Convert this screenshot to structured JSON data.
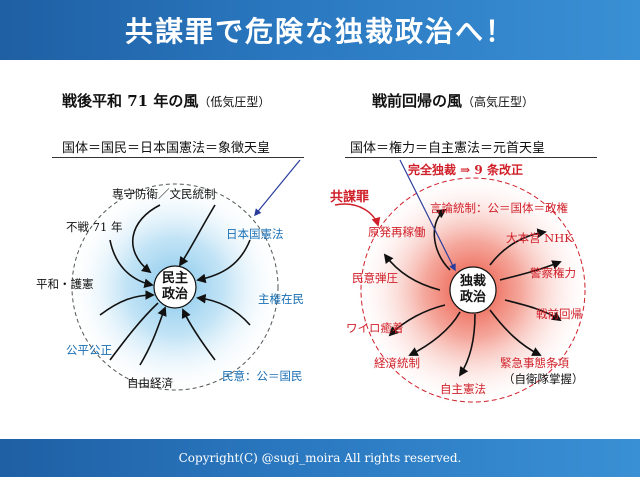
{
  "title": "共謀罪で危険な独裁政治へ！",
  "footer": "Copyright(C) @sugi_moira All rights reserved.",
  "left": {
    "heading": "戦後平和 71 年の風",
    "heading_sub": "（低気圧型）",
    "formula": "国体＝国民＝日本国憲法＝象徴天皇",
    "center": [
      "民主",
      "政治"
    ],
    "labels": [
      "専守防衛／文民統制",
      "不戦 71 年",
      "日本国憲法",
      "平和・護憲",
      "主権在民",
      "公平公正",
      "自由経済",
      "民意：公＝国民"
    ]
  },
  "right": {
    "heading": "戦前回帰の風",
    "heading_sub": "（高気圧型）",
    "formula": "国体＝権力＝自主憲法＝元首天皇",
    "dictatorship_note": "完全独裁 ⇒ 9 条改正",
    "conspiracy_label": "共謀罪",
    "center": [
      "独裁",
      "政治"
    ],
    "labels": [
      "言論統制：公＝国体＝政権",
      "原発再稼働",
      "大本営 NHK",
      "民意弾圧",
      "警察権力",
      "ワイロ癒着",
      "戦前回帰",
      "経済統制",
      "緊急事態条項",
      "（自衛隊掌握）",
      "自主憲法"
    ]
  },
  "colors": {
    "banner": "#2a78c0",
    "blue_text": "#1a6fb3",
    "red_text": "#d0202a",
    "blue_glow": "#7cc3ea",
    "red_glow": "#e8422e"
  }
}
